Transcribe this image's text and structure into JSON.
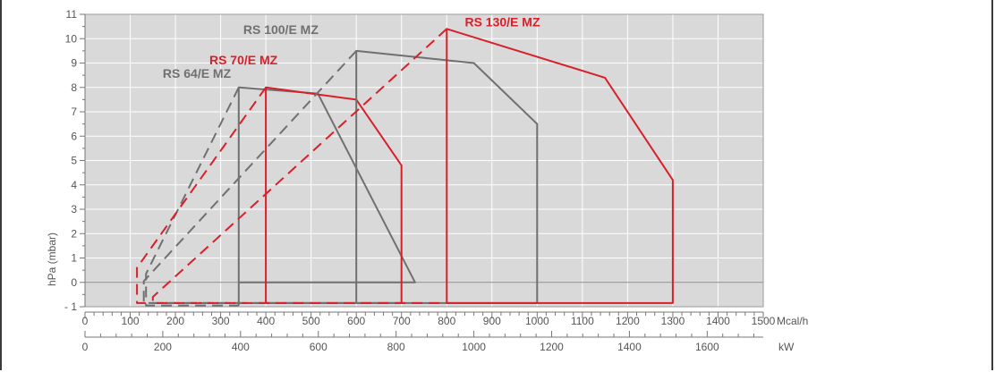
{
  "chart_data": {
    "type": "line",
    "ylabel": "hPa (mbar)",
    "xlabel_top_unit": "Mcal/h",
    "xlabel_bottom_unit": "kW",
    "ylim": [
      -1,
      11
    ],
    "y_ticks": [
      -1,
      0,
      1,
      2,
      3,
      4,
      5,
      6,
      7,
      8,
      9,
      10,
      11
    ],
    "y_tick_labels": [
      "- 1",
      "0",
      "1",
      "2",
      "3",
      "4",
      "5",
      "6",
      "7",
      "8",
      "9",
      "10",
      "11"
    ],
    "xlim_mcal": [
      0,
      1500
    ],
    "x_ticks_mcal": [
      0,
      100,
      200,
      300,
      400,
      500,
      600,
      700,
      800,
      900,
      1000,
      1100,
      1200,
      1300,
      1400,
      1500
    ],
    "x_tick_labels_mcal": [
      "0",
      "100",
      "200",
      "300",
      "400",
      "500",
      "600",
      "700",
      "800",
      "900",
      "1000",
      "1100",
      "1200",
      "1300",
      "1400",
      "1500"
    ],
    "xlim_kw": [
      0,
      1744
    ],
    "x_ticks_kw": [
      0,
      200,
      400,
      600,
      800,
      1000,
      1200,
      1400,
      1600
    ],
    "x_tick_labels_kw": [
      "0",
      "200",
      "400",
      "600",
      "800",
      "1000",
      "1200",
      "1400",
      "1600"
    ],
    "grid": true,
    "series": [
      {
        "name": "RS 64/E MZ",
        "color": "#707070",
        "solid": [
          [
            340,
            -0.95
          ],
          [
            340,
            8.0
          ],
          [
            515,
            7.75
          ],
          [
            730,
            0.0
          ],
          [
            340,
            0.0
          ]
        ],
        "dashed": [
          [
            340,
            8.0
          ],
          [
            135,
            0.35
          ],
          [
            135,
            -0.95
          ],
          [
            340,
            -0.95
          ]
        ],
        "label_at": [
          172,
          8.4
        ]
      },
      {
        "name": "RS 70/E MZ",
        "color": "#d7202a",
        "solid": [
          [
            400,
            -0.85
          ],
          [
            400,
            8.0
          ],
          [
            600,
            7.5
          ],
          [
            700,
            4.8
          ],
          [
            700,
            -0.85
          ],
          [
            400,
            -0.85
          ]
        ],
        "dashed": [
          [
            400,
            8.0
          ],
          [
            115,
            0.6
          ],
          [
            115,
            -0.85
          ],
          [
            400,
            -0.85
          ]
        ],
        "label_at": [
          275,
          8.95
        ]
      },
      {
        "name": "RS 100/E MZ",
        "color": "#707070",
        "solid": [
          [
            600,
            -0.85
          ],
          [
            600,
            9.5
          ],
          [
            860,
            9.0
          ],
          [
            1000,
            6.5
          ],
          [
            1000,
            -0.85
          ],
          [
            600,
            -0.85
          ]
        ],
        "dashed": [
          [
            600,
            9.5
          ],
          [
            130,
            0.05
          ],
          [
            130,
            -0.85
          ],
          [
            600,
            -0.85
          ]
        ],
        "label_at": [
          350,
          10.2
        ]
      },
      {
        "name": "RS 130/E MZ",
        "color": "#d7202a",
        "solid": [
          [
            800,
            -0.85
          ],
          [
            800,
            10.4
          ],
          [
            1150,
            8.4
          ],
          [
            1300,
            4.2
          ],
          [
            1300,
            -0.85
          ],
          [
            800,
            -0.85
          ]
        ],
        "dashed": [
          [
            800,
            10.4
          ],
          [
            150,
            -0.6
          ],
          [
            150,
            -0.85
          ],
          [
            800,
            -0.85
          ]
        ],
        "label_at": [
          840,
          10.5
        ]
      }
    ]
  }
}
